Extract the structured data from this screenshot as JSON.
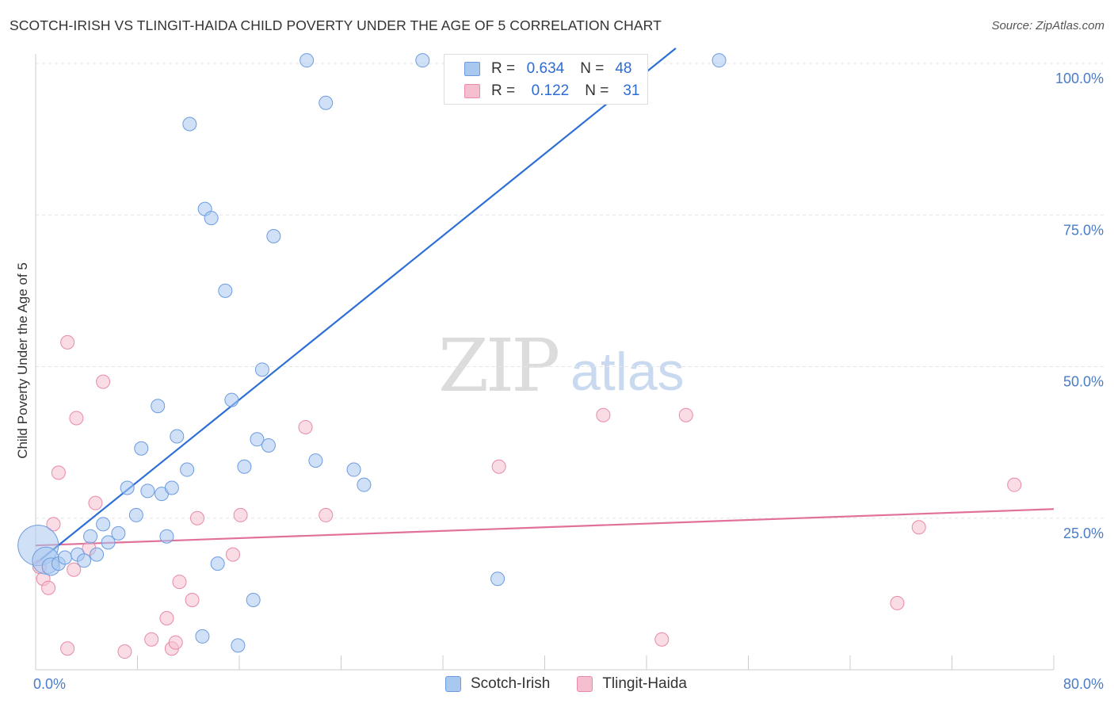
{
  "header": {
    "title": "SCOTCH-IRISH VS TLINGIT-HAIDA CHILD POVERTY UNDER THE AGE OF 5 CORRELATION CHART",
    "source": "Source: ZipAtlas.com"
  },
  "watermark": {
    "zip": "ZIP",
    "atlas": "atlas"
  },
  "legend": {
    "rows": [
      {
        "r_label": "R =",
        "r_value": "0.634",
        "n_label": "N =",
        "n_value": "48"
      },
      {
        "r_label": "R =",
        "r_value": "0.122",
        "n_label": "N =",
        "n_value": "31"
      }
    ]
  },
  "bottom_legend": {
    "series1": "Scotch-Irish",
    "series2": "Tlingit-Haida"
  },
  "colors": {
    "blue_fill": "#a9c8f0",
    "blue_stroke": "#6c9be0",
    "blue_line": "#2d6fd6",
    "pink_fill": "#f6bfd0",
    "pink_stroke": "#e88aa8",
    "pink_line": "#e0719a",
    "grid": "#e5e5e5",
    "tick_label": "#4a7cc7"
  },
  "chart_data": {
    "type": "scatter",
    "title": "SCOTCH-IRISH VS TLINGIT-HAIDA CHILD POVERTY UNDER THE AGE OF 5 CORRELATION CHART",
    "xlabel": "",
    "ylabel": "Child Poverty Under the Age of 5",
    "xlim": [
      0,
      80
    ],
    "ylim": [
      0,
      100
    ],
    "x_tick_labels": [
      "0.0%",
      "80.0%"
    ],
    "y_ticks": [
      25,
      50,
      75,
      100
    ],
    "y_tick_labels": [
      "25.0%",
      "50.0%",
      "75.0%",
      "100.0%"
    ],
    "series": [
      {
        "name": "Scotch-Irish",
        "R": 0.634,
        "N": 48,
        "trend": {
          "x0": 0,
          "y0": 17.5,
          "x1": 50.3,
          "y1": 102.5
        },
        "points": [
          [
            0.2,
            20.5,
            3
          ],
          [
            0.8,
            18.0,
            2
          ],
          [
            1.2,
            17.0,
            1.3
          ],
          [
            1.8,
            17.5,
            1
          ],
          [
            2.3,
            18.5,
            1
          ],
          [
            3.3,
            19.0,
            1
          ],
          [
            3.8,
            18.0,
            1
          ],
          [
            4.3,
            22.0,
            1
          ],
          [
            4.8,
            19.0,
            1
          ],
          [
            5.3,
            24.0,
            1
          ],
          [
            5.7,
            21.0,
            1
          ],
          [
            6.5,
            22.5,
            1
          ],
          [
            7.2,
            30.0,
            1
          ],
          [
            7.9,
            25.5,
            1
          ],
          [
            8.3,
            36.5,
            1
          ],
          [
            8.8,
            29.5,
            1
          ],
          [
            9.6,
            43.5,
            1
          ],
          [
            9.9,
            29.0,
            1
          ],
          [
            10.3,
            22.0,
            1
          ],
          [
            10.7,
            30.0,
            1
          ],
          [
            11.1,
            38.5,
            1
          ],
          [
            11.9,
            33.0,
            1
          ],
          [
            12.1,
            90.0,
            1
          ],
          [
            13.1,
            5.5,
            1
          ],
          [
            13.3,
            76.0,
            1
          ],
          [
            13.8,
            74.5,
            1
          ],
          [
            14.3,
            17.5,
            1
          ],
          [
            14.9,
            62.5,
            1
          ],
          [
            15.4,
            44.5,
            1
          ],
          [
            15.9,
            4.0,
            1
          ],
          [
            16.4,
            33.5,
            1
          ],
          [
            17.1,
            11.5,
            1
          ],
          [
            17.4,
            38.0,
            1
          ],
          [
            17.8,
            49.5,
            1
          ],
          [
            18.3,
            37.0,
            1
          ],
          [
            18.7,
            71.5,
            1
          ],
          [
            21.3,
            100.5,
            1
          ],
          [
            22.0,
            34.5,
            1
          ],
          [
            22.8,
            93.5,
            1
          ],
          [
            25.0,
            33.0,
            1
          ],
          [
            25.8,
            30.5,
            1
          ],
          [
            30.4,
            100.5,
            1
          ],
          [
            36.3,
            15.0,
            1
          ],
          [
            53.7,
            100.5,
            1
          ]
        ]
      },
      {
        "name": "Tlingit-Haida",
        "R": 0.122,
        "N": 31,
        "trend": {
          "x0": 0,
          "y0": 20.5,
          "x1": 80,
          "y1": 26.5
        },
        "points": [
          [
            0.3,
            17.0,
            1
          ],
          [
            0.6,
            15.0,
            1
          ],
          [
            1.0,
            13.5,
            1
          ],
          [
            1.4,
            24.0,
            1
          ],
          [
            1.8,
            32.5,
            1
          ],
          [
            2.5,
            54.0,
            1
          ],
          [
            2.5,
            3.5,
            1
          ],
          [
            3.0,
            16.5,
            1
          ],
          [
            3.2,
            41.5,
            1
          ],
          [
            4.2,
            20.0,
            1
          ],
          [
            4.7,
            27.5,
            1
          ],
          [
            5.3,
            47.5,
            1
          ],
          [
            7.0,
            3.0,
            1
          ],
          [
            9.1,
            5.0,
            1
          ],
          [
            10.3,
            8.5,
            1
          ],
          [
            10.7,
            3.5,
            1
          ],
          [
            11.0,
            4.5,
            1
          ],
          [
            11.3,
            14.5,
            1
          ],
          [
            12.3,
            11.5,
            1
          ],
          [
            12.7,
            25.0,
            1
          ],
          [
            15.5,
            19.0,
            1
          ],
          [
            16.1,
            25.5,
            1
          ],
          [
            21.2,
            40.0,
            1
          ],
          [
            22.8,
            25.5,
            1
          ],
          [
            36.4,
            33.5,
            1
          ],
          [
            44.6,
            42.0,
            1
          ],
          [
            49.2,
            5.0,
            1
          ],
          [
            51.1,
            42.0,
            1
          ],
          [
            67.7,
            11.0,
            1
          ],
          [
            69.4,
            23.5,
            1
          ],
          [
            76.9,
            30.5,
            1
          ]
        ]
      }
    ]
  }
}
